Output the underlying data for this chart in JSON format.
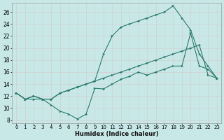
{
  "xlabel": "Humidex (Indice chaleur)",
  "bg_color": "#c8e8e8",
  "grid_color": "#d0d0d0",
  "line_color": "#2d7a6e",
  "xlim": [
    -0.5,
    23.5
  ],
  "ylim": [
    7.5,
    27.5
  ],
  "xticks": [
    0,
    1,
    2,
    3,
    4,
    5,
    6,
    7,
    8,
    9,
    10,
    11,
    12,
    13,
    14,
    15,
    16,
    17,
    18,
    19,
    20,
    21,
    22,
    23
  ],
  "yticks": [
    8,
    10,
    12,
    14,
    16,
    18,
    20,
    22,
    24,
    26
  ],
  "line1_x": [
    0,
    1,
    2,
    3,
    4,
    5,
    6,
    7,
    8,
    9,
    10,
    11,
    12,
    13,
    14,
    15,
    16,
    17,
    18,
    19,
    20,
    21,
    22,
    23
  ],
  "line1_y": [
    12.5,
    11.5,
    12.0,
    11.5,
    11.5,
    12.5,
    13.0,
    13.5,
    14.0,
    14.5,
    15.0,
    15.5,
    16.0,
    16.5,
    17.0,
    17.5,
    18.0,
    18.5,
    19.0,
    19.5,
    20.0,
    20.5,
    15.5,
    15.0
  ],
  "line2_x": [
    0,
    1,
    2,
    3,
    4,
    5,
    6,
    7,
    8,
    9,
    10,
    11,
    12,
    13,
    14,
    15,
    16,
    17,
    18,
    19,
    20,
    21,
    22,
    23
  ],
  "line2_y": [
    12.5,
    11.5,
    12.0,
    11.5,
    11.5,
    12.5,
    13.0,
    13.5,
    14.0,
    14.5,
    19.0,
    22.0,
    23.5,
    24.0,
    24.5,
    25.0,
    25.5,
    26.0,
    27.0,
    25.0,
    23.0,
    19.0,
    17.0,
    15.0
  ],
  "line3_x": [
    0,
    1,
    2,
    3,
    4,
    5,
    6,
    7,
    8,
    9,
    10,
    11,
    12,
    13,
    14,
    15,
    16,
    17,
    18,
    19,
    20,
    21,
    22,
    23
  ],
  "line3_y": [
    12.5,
    11.5,
    11.5,
    11.5,
    10.5,
    9.5,
    9.0,
    8.2,
    9.0,
    13.3,
    13.2,
    14.0,
    14.8,
    15.3,
    16.0,
    15.5,
    16.0,
    16.5,
    17.0,
    17.0,
    22.5,
    17.0,
    16.5,
    15.0
  ]
}
